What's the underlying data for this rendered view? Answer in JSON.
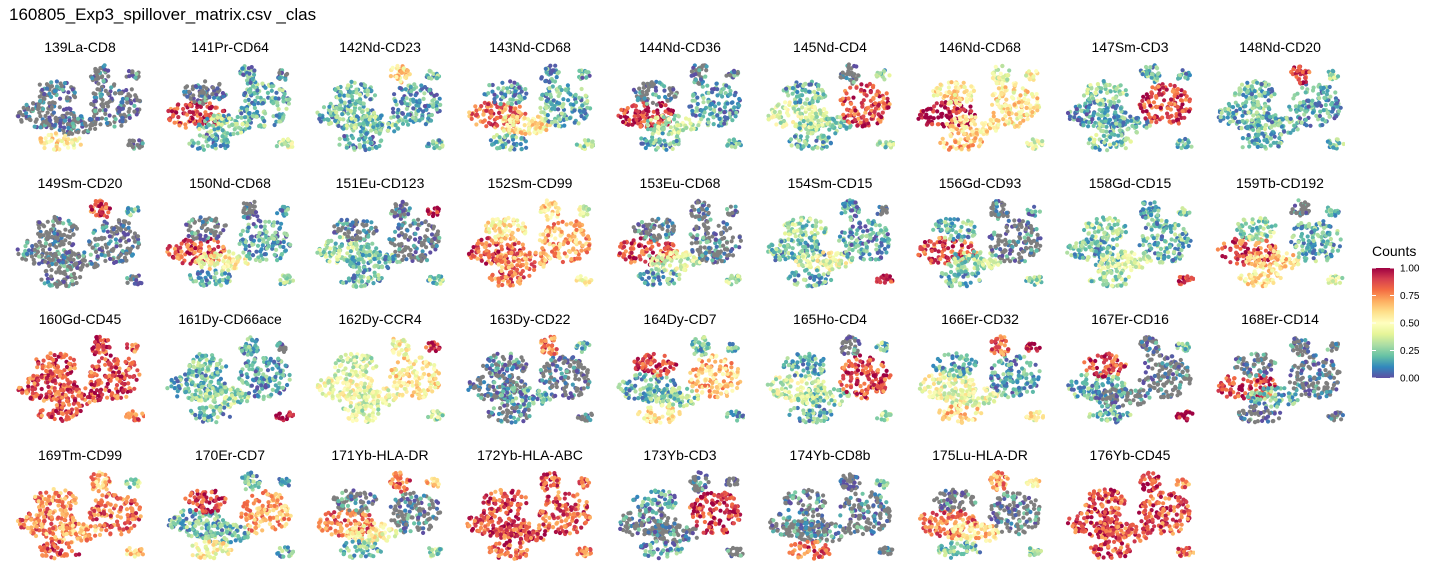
{
  "title": "160805_Exp3_spillover_matrix.csv _clas",
  "chart_data": {
    "type": "scatter",
    "panels": [
      {
        "label": "139La-CD8",
        "scores": {
          "A": 0.05,
          "B": 0.05,
          "C": 0.05,
          "D": 0.05,
          "E": 0.05,
          "F": 0.1,
          "G": 0.55,
          "H": 0.08
        }
      },
      {
        "label": "141Pr-CD64",
        "scores": {
          "A": 0.88,
          "B": 0.25,
          "C": 0.2,
          "D": 0.1,
          "E": 0.15,
          "F": 0.1,
          "G": 0.15,
          "H": 0.4
        }
      },
      {
        "label": "142Nd-CD23",
        "scores": {
          "A": 0.2,
          "B": 0.25,
          "C": 0.15,
          "D": 0.2,
          "E": 0.6,
          "F": 0.2,
          "G": 0.15,
          "H": 0.2
        }
      },
      {
        "label": "143Nd-CD68",
        "scores": {
          "A": 0.8,
          "B": 0.55,
          "C": 0.2,
          "D": 0.15,
          "E": 0.15,
          "F": 0.15,
          "G": 0.2,
          "H": 0.3
        }
      },
      {
        "label": "144Nd-CD36",
        "scores": {
          "A": 0.92,
          "B": 0.35,
          "C": 0.15,
          "D": 0.1,
          "E": 0.1,
          "F": 0.1,
          "G": 0.2,
          "H": 0.2
        }
      },
      {
        "label": "145Nd-CD4",
        "scores": {
          "A": 0.4,
          "B": 0.3,
          "C": 0.85,
          "D": 0.2,
          "E": 0.1,
          "F": 0.25,
          "G": 0.2,
          "H": 0.3
        }
      },
      {
        "label": "146Nd-CD68",
        "scores": {
          "A": 0.97,
          "B": 0.6,
          "C": 0.55,
          "D": 0.55,
          "E": 0.45,
          "F": 0.5,
          "G": 0.65,
          "H": 0.4
        }
      },
      {
        "label": "147Sm-CD3",
        "scores": {
          "A": 0.15,
          "B": 0.2,
          "C": 0.88,
          "D": 0.3,
          "E": 0.2,
          "F": 0.2,
          "G": 0.25,
          "H": 0.2
        }
      },
      {
        "label": "148Nd-CD20",
        "scores": {
          "A": 0.2,
          "B": 0.2,
          "C": 0.15,
          "D": 0.2,
          "E": 0.9,
          "F": 0.3,
          "G": 0.2,
          "H": 0.25
        }
      },
      {
        "label": "149Sm-CD20",
        "scores": {
          "A": 0.1,
          "B": 0.1,
          "C": 0.05,
          "D": 0.1,
          "E": 0.85,
          "F": 0.2,
          "G": 0.1,
          "H": 0.1
        }
      },
      {
        "label": "150Nd-CD68",
        "scores": {
          "A": 0.85,
          "B": 0.5,
          "C": 0.15,
          "D": 0.1,
          "E": 0.1,
          "F": 0.15,
          "G": 0.2,
          "H": 0.3
        }
      },
      {
        "label": "151Eu-CD123",
        "scores": {
          "A": 0.3,
          "B": 0.2,
          "C": 0.05,
          "D": 0.1,
          "E": 0.1,
          "F": 0.95,
          "G": 0.2,
          "H": 0.25
        }
      },
      {
        "label": "152Sm-CD99",
        "scores": {
          "A": 0.85,
          "B": 0.75,
          "C": 0.7,
          "D": 0.55,
          "E": 0.6,
          "F": 0.4,
          "G": 0.8,
          "H": 0.5
        }
      },
      {
        "label": "153Eu-CD68",
        "scores": {
          "A": 0.88,
          "B": 0.4,
          "C": 0.1,
          "D": 0.1,
          "E": 0.1,
          "F": 0.1,
          "G": 0.2,
          "H": 0.3
        }
      },
      {
        "label": "154Sm-CD15",
        "scores": {
          "A": 0.2,
          "B": 0.45,
          "C": 0.15,
          "D": 0.3,
          "E": 0.15,
          "F": 0.1,
          "G": 0.2,
          "H": 0.95
        }
      },
      {
        "label": "156Gd-CD93",
        "scores": {
          "A": 0.85,
          "B": 0.3,
          "C": 0.1,
          "D": 0.2,
          "E": 0.1,
          "F": 0.15,
          "G": 0.2,
          "H": 0.3
        }
      },
      {
        "label": "158Gd-CD15",
        "scores": {
          "A": 0.2,
          "B": 0.4,
          "C": 0.2,
          "D": 0.3,
          "E": 0.2,
          "F": 0.2,
          "G": 0.3,
          "H": 0.95
        }
      },
      {
        "label": "159Tb-CD192",
        "scores": {
          "A": 0.85,
          "B": 0.6,
          "C": 0.2,
          "D": 0.3,
          "E": 0.1,
          "F": 0.2,
          "G": 0.55,
          "H": 0.4
        }
      },
      {
        "label": "160Gd-CD45",
        "scores": {
          "A": 0.85,
          "B": 0.85,
          "C": 0.85,
          "D": 0.85,
          "E": 0.9,
          "F": 0.8,
          "G": 0.85,
          "H": 0.8
        }
      },
      {
        "label": "161Dy-CD66ace",
        "scores": {
          "A": 0.2,
          "B": 0.3,
          "C": 0.15,
          "D": 0.2,
          "E": 0.2,
          "F": 0.1,
          "G": 0.2,
          "H": 0.98
        }
      },
      {
        "label": "162Dy-CCR4",
        "scores": {
          "A": 0.45,
          "B": 0.45,
          "C": 0.55,
          "D": 0.4,
          "E": 0.5,
          "F": 0.9,
          "G": 0.4,
          "H": 0.35
        }
      },
      {
        "label": "163Dy-CD22",
        "scores": {
          "A": 0.1,
          "B": 0.15,
          "C": 0.05,
          "D": 0.1,
          "E": 0.8,
          "F": 0.2,
          "G": 0.1,
          "H": 0.1
        }
      },
      {
        "label": "164Dy-CD7",
        "scores": {
          "A": 0.2,
          "B": 0.25,
          "C": 0.65,
          "D": 0.9,
          "E": 0.2,
          "F": 0.2,
          "G": 0.55,
          "H": 0.2
        }
      },
      {
        "label": "165Ho-CD4",
        "scores": {
          "A": 0.4,
          "B": 0.3,
          "C": 0.88,
          "D": 0.2,
          "E": 0.1,
          "F": 0.25,
          "G": 0.2,
          "H": 0.35
        }
      },
      {
        "label": "166Er-CD32",
        "scores": {
          "A": 0.45,
          "B": 0.45,
          "C": 0.15,
          "D": 0.2,
          "E": 0.8,
          "F": 0.95,
          "G": 0.6,
          "H": 0.5
        }
      },
      {
        "label": "167Er-CD16",
        "scores": {
          "A": 0.2,
          "B": 0.1,
          "C": 0.1,
          "D": 0.85,
          "E": 0.1,
          "F": 0.2,
          "G": 0.2,
          "H": 0.95
        }
      },
      {
        "label": "168Er-CD14",
        "scores": {
          "A": 0.88,
          "B": 0.2,
          "C": 0.1,
          "D": 0.1,
          "E": 0.1,
          "F": 0.1,
          "G": 0.1,
          "H": 0.1
        }
      },
      {
        "label": "169Tm-CD99",
        "scores": {
          "A": 0.8,
          "B": 0.7,
          "C": 0.82,
          "D": 0.75,
          "E": 0.7,
          "F": 0.3,
          "G": 0.85,
          "H": 0.6
        }
      },
      {
        "label": "170Er-CD7",
        "scores": {
          "A": 0.2,
          "B": 0.2,
          "C": 0.7,
          "D": 0.9,
          "E": 0.2,
          "F": 0.2,
          "G": 0.5,
          "H": 0.2
        }
      },
      {
        "label": "171Yb-HLA-DR",
        "scores": {
          "A": 0.8,
          "B": 0.5,
          "C": 0.1,
          "D": 0.1,
          "E": 0.8,
          "F": 0.6,
          "G": 0.2,
          "H": 0.3
        }
      },
      {
        "label": "172Yb-HLA-ABC",
        "scores": {
          "A": 0.88,
          "B": 0.85,
          "C": 0.82,
          "D": 0.85,
          "E": 0.85,
          "F": 0.8,
          "G": 0.85,
          "H": 0.8
        }
      },
      {
        "label": "173Yb-CD3",
        "scores": {
          "A": 0.1,
          "B": 0.1,
          "C": 0.9,
          "D": 0.15,
          "E": 0.1,
          "F": 0.1,
          "G": 0.15,
          "H": 0.1
        }
      },
      {
        "label": "174Yb-CD8b",
        "scores": {
          "A": 0.1,
          "B": 0.1,
          "C": 0.1,
          "D": 0.1,
          "E": 0.1,
          "F": 0.2,
          "G": 0.85,
          "H": 0.1
        }
      },
      {
        "label": "175Lu-HLA-DR",
        "scores": {
          "A": 0.8,
          "B": 0.6,
          "C": 0.1,
          "D": 0.1,
          "E": 0.75,
          "F": 0.55,
          "G": 0.2,
          "H": 0.3
        }
      },
      {
        "label": "176Yb-CD45",
        "scores": {
          "A": 0.88,
          "B": 0.85,
          "C": 0.85,
          "D": 0.85,
          "E": 0.9,
          "F": 0.8,
          "G": 0.85,
          "H": 0.8
        }
      }
    ],
    "legend": {
      "title": "Counts",
      "ticks": [
        1.0,
        0.75,
        0.5,
        0.25,
        0.0
      ],
      "tick_labels": [
        "1.00",
        "0.75",
        "0.50",
        "0.25",
        "0.00"
      ],
      "colors": [
        "#5E4FA2",
        "#3288BD",
        "#66C2A5",
        "#ABDDA4",
        "#E6F598",
        "#FFFFBF",
        "#FEE08B",
        "#FDAE61",
        "#F46D43",
        "#D53E4F",
        "#9E0142"
      ]
    },
    "na_color": "#7F7F7F"
  }
}
